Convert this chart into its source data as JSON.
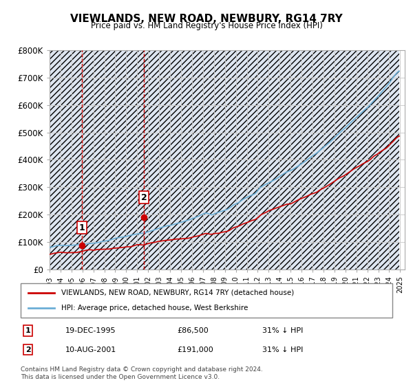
{
  "title": "VIEWLANDS, NEW ROAD, NEWBURY, RG14 7RY",
  "subtitle": "Price paid vs. HM Land Registry's House Price Index (HPI)",
  "ylim": [
    0,
    800000
  ],
  "yticks": [
    0,
    100000,
    200000,
    300000,
    400000,
    500000,
    600000,
    700000,
    800000
  ],
  "ytick_labels": [
    "£0",
    "£100K",
    "£200K",
    "£300K",
    "£400K",
    "£500K",
    "£600K",
    "£700K",
    "£800K"
  ],
  "hpi_color": "#6baed6",
  "price_color": "#cc0000",
  "dot_color": "#cc0000",
  "vline_color": "#cc0000",
  "marker1_date_idx": 2,
  "marker2_date_idx": 8,
  "transaction1": {
    "label": "1",
    "date": "19-DEC-1995",
    "price": 86500,
    "note": "31% ↓ HPI"
  },
  "transaction2": {
    "label": "2",
    "date": "10-AUG-2001",
    "price": 191000,
    "note": "31% ↓ HPI"
  },
  "legend_property": "VIEWLANDS, NEW ROAD, NEWBURY, RG14 7RY (detached house)",
  "legend_hpi": "HPI: Average price, detached house, West Berkshire",
  "footer": "Contains HM Land Registry data © Crown copyright and database right 2024.\nThis data is licensed under the Open Government Licence v3.0.",
  "background_color": "#ffffff",
  "plot_bg_color": "#ffffff",
  "grid_color": "#cccccc",
  "hatch_color": "#d0d8e8"
}
